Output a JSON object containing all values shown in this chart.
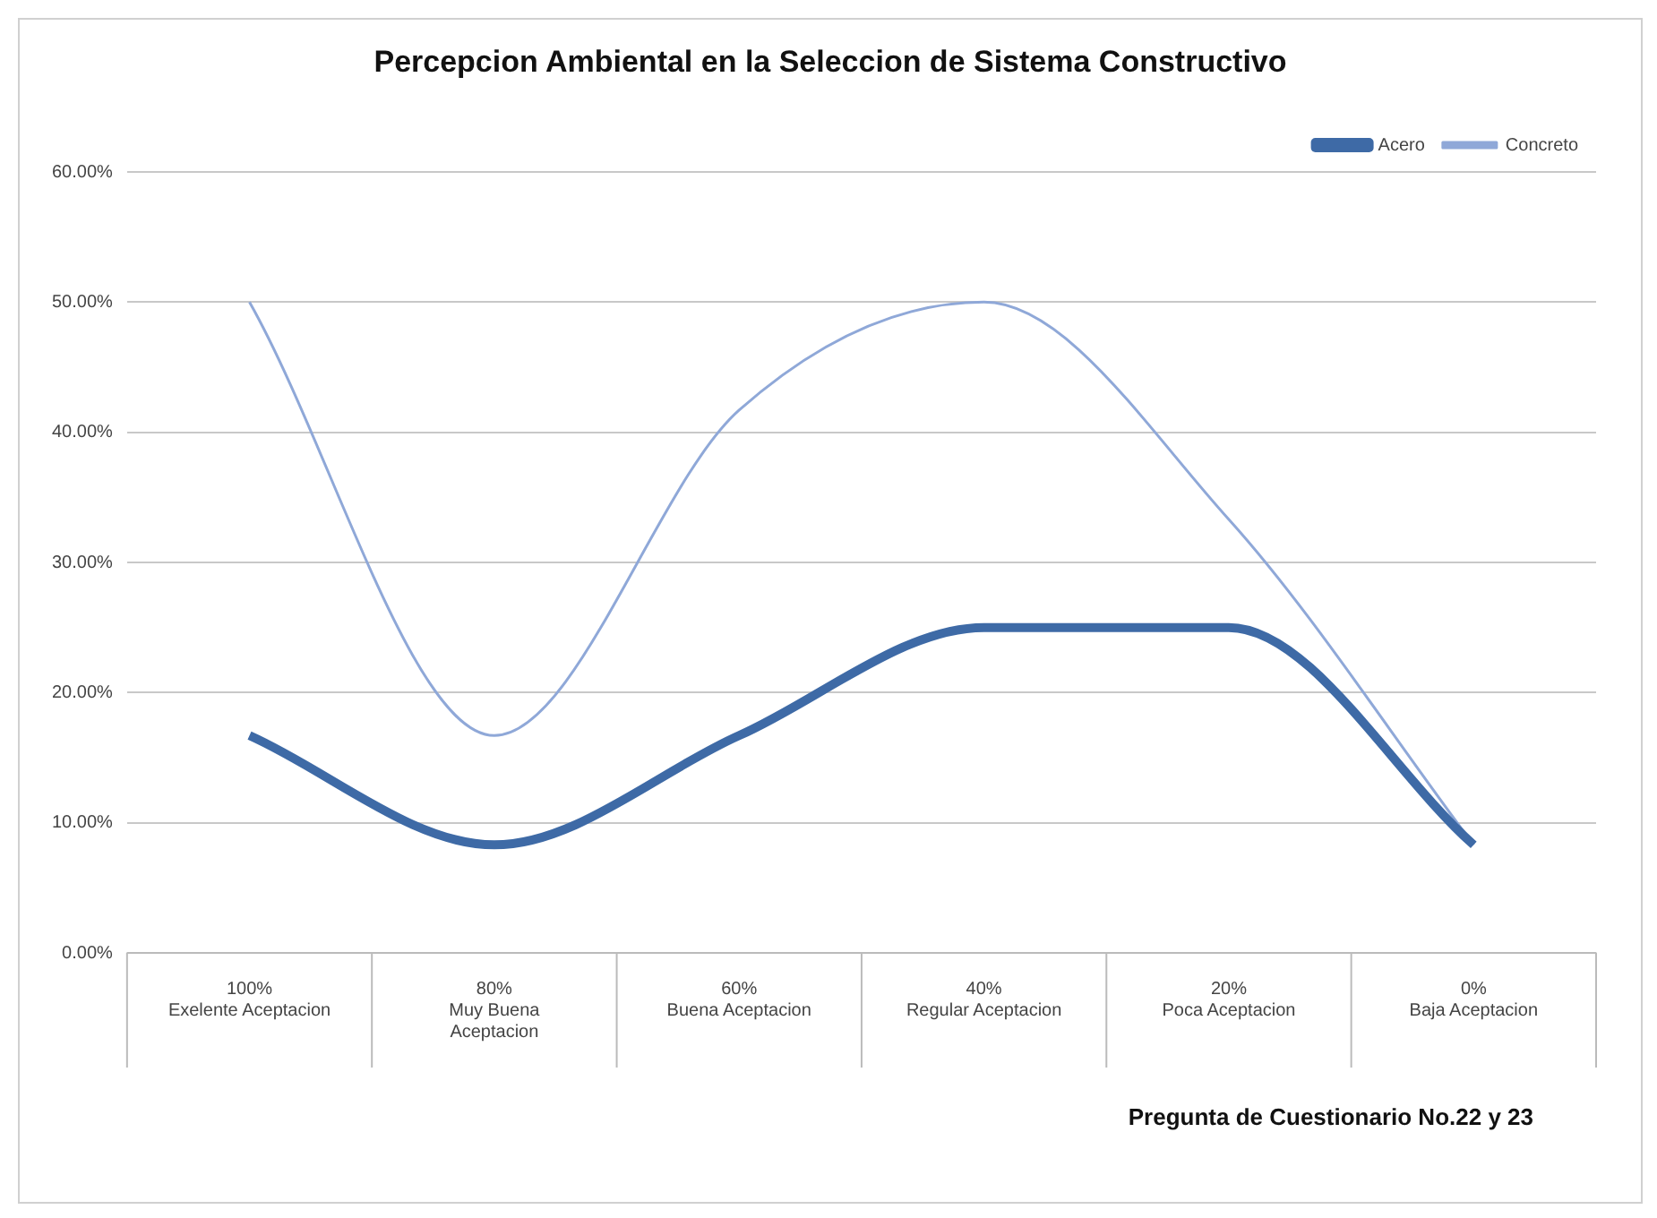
{
  "chart_data": {
    "type": "line",
    "title": "Percepcion Ambiental en la Seleccion de Sistema Constructivo",
    "categories": [
      "100%\nExelente Aceptacion",
      "80%\nMuy Buena\nAceptacion",
      "60%\nBuena Aceptacion",
      "40%\nRegular Aceptacion",
      "20%\nPoca Aceptacion",
      "0%\nBaja Aceptacion"
    ],
    "series": [
      {
        "name": "Acero",
        "color": "#3e6aa6",
        "values": [
          16.7,
          8.3,
          16.7,
          25,
          25,
          8.3
        ]
      },
      {
        "name": "Concreto",
        "color": "#8fa8d8",
        "values": [
          50,
          16.7,
          41.7,
          50,
          33.3,
          8.3
        ]
      }
    ],
    "ylim": [
      0,
      60
    ],
    "yticks": [
      {
        "value": 0,
        "label": "0.00%"
      },
      {
        "value": 10,
        "label": "10.00%"
      },
      {
        "value": 20,
        "label": "20.00%"
      },
      {
        "value": 30,
        "label": "30.00%"
      },
      {
        "value": 40,
        "label": "40.00%"
      },
      {
        "value": 50,
        "label": "50.00%"
      },
      {
        "value": 60,
        "label": "60.00%"
      }
    ],
    "grid": "y",
    "legend": "top right",
    "marker": "none",
    "line_style": "solid",
    "annotations": [
      "Pregunta de Cuestionario No.22 y 23"
    ]
  }
}
